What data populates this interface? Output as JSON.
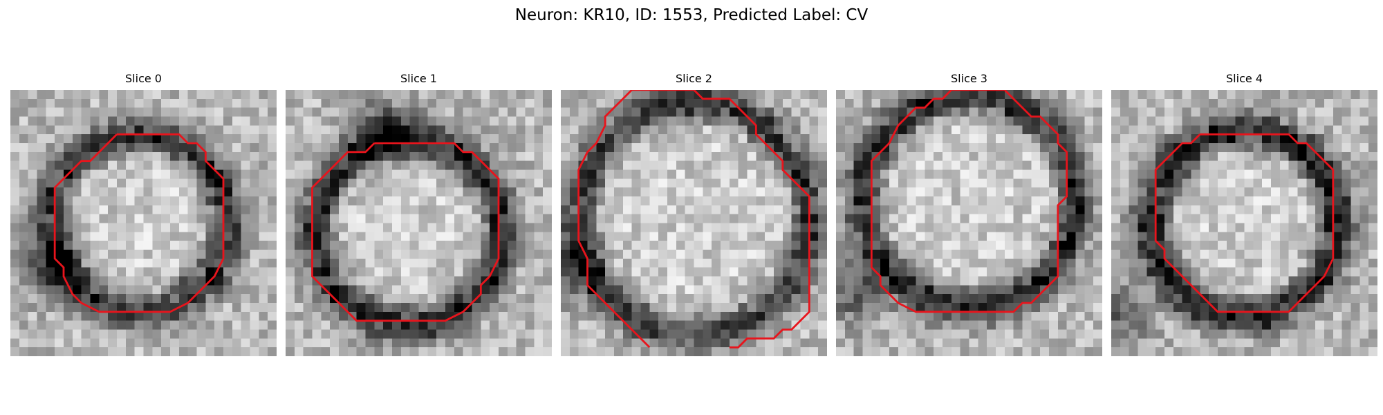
{
  "figure": {
    "title": "Neuron: KR10, ID: 1553, Predicted Label: CV"
  },
  "contour_color": "#e8141c",
  "image_colormap": "gray",
  "panels": [
    {
      "title": "Slice 0",
      "seed": 11,
      "ring_darkness": 0.55,
      "dark_blob": [
        0.15,
        0.65
      ]
    },
    {
      "title": "Slice 1",
      "seed": 23,
      "ring_darkness": 0.6,
      "dark_blob": [
        0.35,
        0.12
      ]
    },
    {
      "title": "Slice 2",
      "seed": 37,
      "ring_darkness": 0.5,
      "dark_blob": [
        0.02,
        0.65
      ]
    },
    {
      "title": "Slice 3",
      "seed": 41,
      "ring_darkness": 0.58,
      "dark_blob": [
        0.05,
        0.75
      ]
    },
    {
      "title": "Slice 4",
      "seed": 53,
      "ring_darkness": 0.62,
      "dark_blob": [
        0.02,
        0.82
      ]
    }
  ]
}
